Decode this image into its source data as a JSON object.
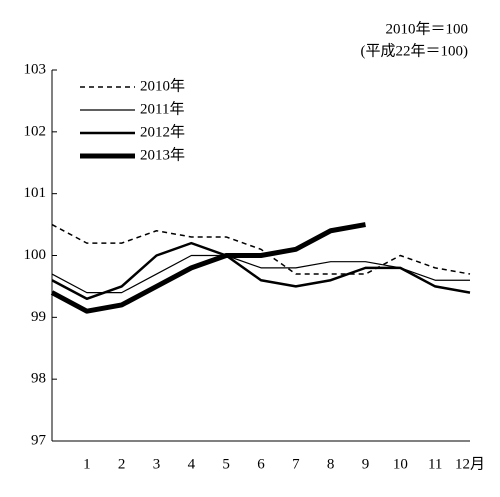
{
  "chart_data": {
    "type": "line",
    "annotations": [
      "2010年＝100",
      "(平成22年＝100)"
    ],
    "categories": [
      null,
      "1",
      "2",
      "3",
      "4",
      "5",
      "6",
      "7",
      "8",
      "9",
      "10",
      "11",
      "12月"
    ],
    "series": [
      {
        "name": "2010年",
        "color": "#000000",
        "width": 1.5,
        "dash": "5,4",
        "values": [
          100.5,
          100.2,
          100.2,
          100.4,
          100.3,
          100.3,
          100.1,
          99.7,
          99.7,
          99.7,
          100.0,
          99.8,
          99.7
        ]
      },
      {
        "name": "2011年",
        "color": "#000000",
        "width": 1.2,
        "dash": "none",
        "values": [
          99.7,
          99.4,
          99.4,
          99.7,
          100.0,
          100.0,
          99.8,
          99.8,
          99.9,
          99.9,
          99.8,
          99.6,
          99.6
        ]
      },
      {
        "name": "2012年",
        "color": "#000000",
        "width": 2.5,
        "dash": "none",
        "values": [
          99.6,
          99.3,
          99.5,
          100.0,
          100.2,
          100.0,
          99.6,
          99.5,
          99.6,
          99.8,
          99.8,
          99.5,
          99.4
        ]
      },
      {
        "name": "2013年",
        "color": "#000000",
        "width": 5,
        "dash": "none",
        "values": [
          99.4,
          99.1,
          99.2,
          99.5,
          99.8,
          100.0,
          100.0,
          100.1,
          100.4,
          100.5,
          null,
          null,
          null
        ]
      }
    ],
    "ylim": [
      97,
      103
    ],
    "yticks": [
      97,
      98,
      99,
      100,
      101,
      102,
      103
    ],
    "grid": false
  }
}
